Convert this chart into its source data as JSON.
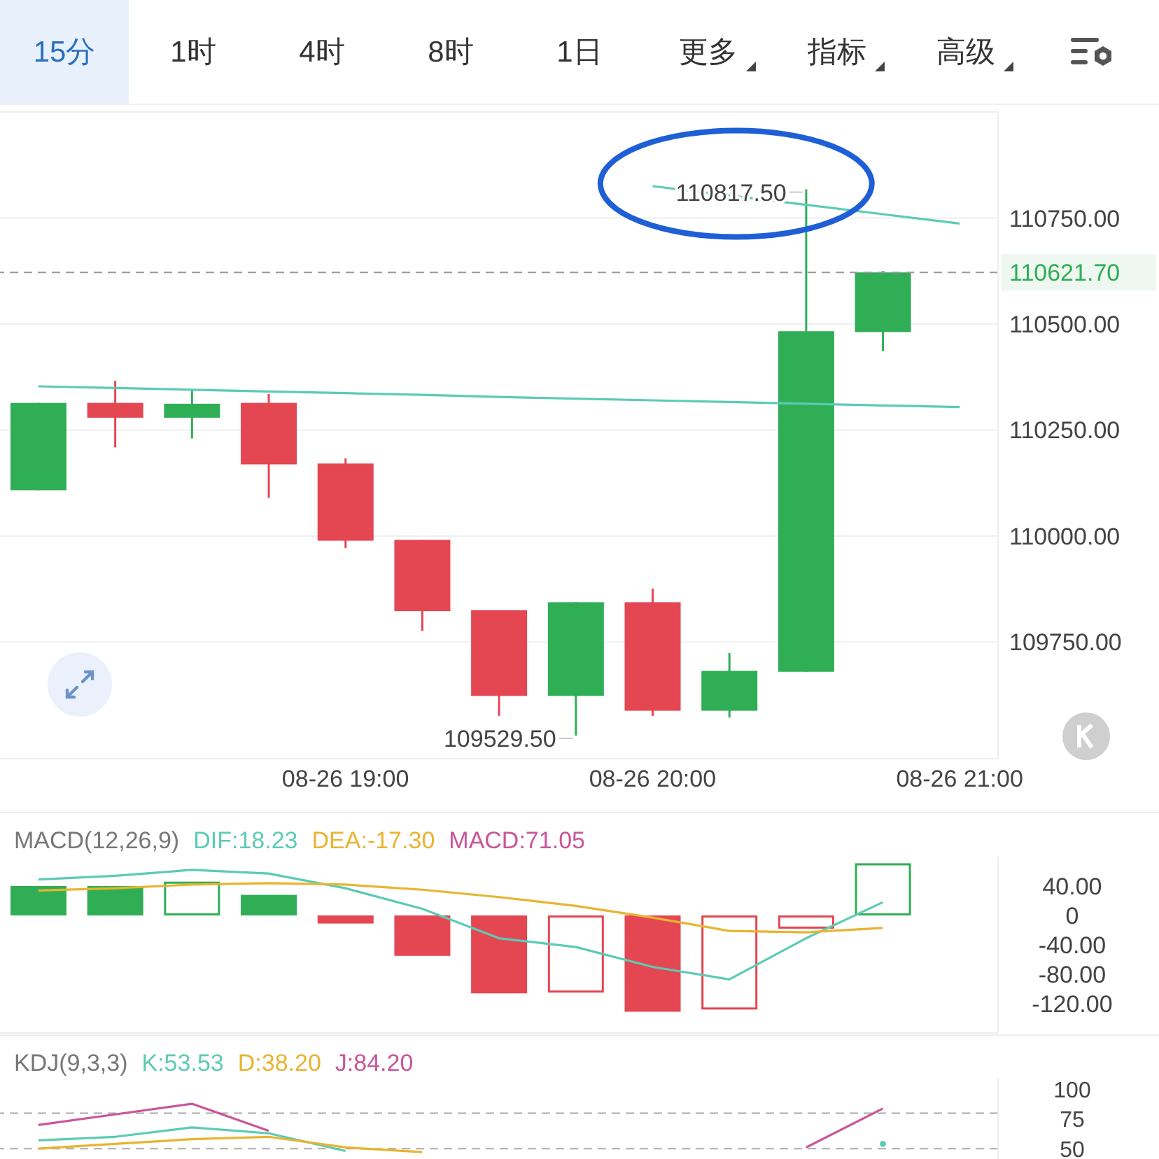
{
  "chart_data": [
    {
      "type": "candlestick",
      "categories": [
        null,
        null,
        null,
        null,
        "08-26 19:00",
        null,
        null,
        null,
        "08-26 20:00",
        null,
        null,
        null,
        "08-26 21:00"
      ],
      "ohlc": [
        [
          110108,
          110314,
          110108,
          110314
        ],
        [
          110314,
          110366,
          110209,
          110279
        ],
        [
          110279,
          110343,
          110230,
          110312
        ],
        [
          110314,
          110335,
          110090,
          110169
        ],
        [
          110171,
          110183,
          109972,
          109989
        ],
        [
          109991,
          109991,
          109776,
          109823
        ],
        [
          109825,
          109825,
          109576,
          109623
        ],
        [
          109623,
          109844,
          109529.5,
          109844
        ],
        [
          109844,
          109876,
          109576,
          109588
        ],
        [
          109588,
          109724,
          109572,
          109682
        ],
        [
          109680,
          110817.5,
          109680,
          110483
        ],
        [
          110481,
          110625,
          110436,
          110621.7
        ],
        null
      ],
      "colors": [
        "#2fae56",
        "#e44652",
        "#2fae56",
        "#e44652",
        "#e44652",
        "#e44652",
        "#e44652",
        "#2fae56",
        "#e44652",
        "#2fae56",
        "#2fae56",
        "#2fae56",
        null
      ],
      "series": [
        {
          "type": "line",
          "color": "#5ccbb5",
          "values": [
            110353,
            110349,
            110345,
            110341,
            110337,
            110333,
            110328,
            110324,
            110320,
            110316,
            110312,
            110308,
            110304
          ]
        },
        {
          "type": "line",
          "color": "#5ccbb5",
          "values": [
            null,
            null,
            null,
            null,
            null,
            null,
            null,
            null,
            110825,
            110803,
            110781,
            110759,
            110737
          ]
        }
      ],
      "ylim": [
        109475,
        111000
      ],
      "yticks": [
        {
          "value": 109750,
          "label": "109750.00"
        },
        {
          "value": 110000,
          "label": "110000.00"
        },
        {
          "value": 110250,
          "label": "110250.00"
        },
        {
          "value": 110500,
          "label": "110500.00"
        },
        {
          "value": 110750,
          "label": "110750.00"
        }
      ],
      "grid": "y",
      "ref_lines": [
        {
          "axis": "y",
          "value": 110621.7,
          "label": "110621.70",
          "color": "#999999",
          "line_style": "dashed"
        }
      ],
      "annotations": [
        "15分",
        "1时",
        "4时",
        "8时",
        "1日",
        "更多",
        "指标",
        "高级",
        {
          "text": "110817.50",
          "y": 110817.5
        },
        "109529.50"
      ]
    },
    {
      "type": "bar",
      "title": "MACD(12,26,9)",
      "categories": [
        null,
        null,
        null,
        null,
        null,
        null,
        null,
        null,
        null,
        null,
        null,
        null,
        null
      ],
      "series": [
        {
          "type": "line",
          "name": "DIF:18.23",
          "color": "#5ccbb5",
          "values": [
            49,
            54,
            62,
            57,
            37,
            9,
            -31,
            -43,
            -70,
            -87,
            -31,
            18,
            null
          ]
        },
        {
          "type": "line",
          "name": "DEA:-17.30",
          "color": "#e8b431",
          "values": [
            34,
            37,
            42,
            44,
            42,
            35,
            25,
            13,
            -3,
            -21,
            -23,
            -17,
            null
          ]
        }
      ],
      "colors": [
        "#2fae56",
        "#2fae56",
        "#2fae56",
        "#2fae56",
        "#e44652",
        "#e44652",
        "#e44652",
        "#e44652",
        "#e44652",
        "#e44652",
        "#e44652",
        "#2fae56",
        null
      ],
      "values": [
        40,
        40,
        46,
        28,
        -11,
        -55,
        -106,
        -105,
        -131,
        -128,
        -18,
        71,
        null
      ],
      "annotations": [
        "MACD:71.05"
      ],
      "ylim": [
        -160,
        80
      ],
      "yticks": [
        {
          "value": 40,
          "label": "40.00"
        },
        0,
        {
          "value": -40,
          "label": "-40.00"
        },
        {
          "value": -80,
          "label": "-80.00"
        },
        {
          "value": -120,
          "label": "-120.00"
        }
      ],
      "tick_labels": "y",
      "legend": "top left"
    },
    {
      "type": "line",
      "title": "KDJ(9,3,3)",
      "categories": [
        null,
        null,
        null,
        null,
        null,
        null,
        null,
        null,
        null,
        null,
        null,
        null,
        null
      ],
      "series": [
        {
          "name": "K:53.53",
          "color": "#5ccbb5",
          "values": [
            57,
            60,
            68,
            63,
            48,
            null,
            null,
            null,
            null,
            null,
            null,
            54,
            null
          ]
        },
        {
          "name": "D:38.20",
          "color": "#e8b431",
          "values": [
            50,
            54,
            58,
            60,
            51,
            47,
            null,
            null,
            null,
            null,
            null,
            null,
            null
          ]
        },
        {
          "name": "J:84.20",
          "color": "#c9569a",
          "values": [
            70,
            79,
            88,
            65,
            null,
            null,
            null,
            null,
            null,
            null,
            51,
            84,
            null
          ]
        }
      ],
      "ylim": [
        40,
        110
      ],
      "yticks": [
        50,
        75,
        100
      ],
      "ref_lines": [
        {
          "axis": "y",
          "value": 80,
          "color": "#aaaaaa",
          "line_style": "dashed"
        },
        {
          "axis": "y",
          "value": 50,
          "color": "#aaaaaa",
          "line_style": "dashed"
        }
      ],
      "tick_labels": "y",
      "legend": "top left"
    }
  ]
}
